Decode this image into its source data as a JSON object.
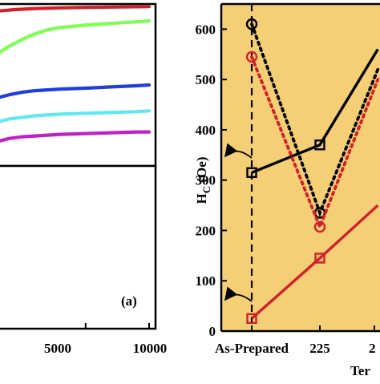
{
  "chart_data": [
    {
      "type": "line",
      "panel_label": "(a)",
      "x_ticks": [
        "5000",
        "10000"
      ],
      "xlim": [
        -2000,
        10000
      ],
      "ylim": [
        0,
        1
      ],
      "grid": false,
      "series": [
        {
          "color": "#d0202a",
          "x": [
            -2000,
            -500,
            1000,
            3000,
            5000,
            7000,
            9000,
            10000
          ],
          "values": [
            0.956,
            0.966,
            0.972,
            0.976,
            0.979,
            0.981,
            0.983,
            0.984
          ]
        },
        {
          "color": "#7cff52",
          "x": [
            -2000,
            -1000,
            0,
            500,
            1000,
            2000,
            3000,
            5000,
            7000,
            9000,
            10000
          ],
          "values": [
            0.69,
            0.74,
            0.78,
            0.8,
            0.815,
            0.84,
            0.855,
            0.87,
            0.88,
            0.89,
            0.895
          ]
        },
        {
          "color": "#1f3fd8",
          "x": [
            -2000,
            -1000,
            0,
            1000,
            3000,
            5000,
            7000,
            9000,
            10000
          ],
          "values": [
            0.42,
            0.44,
            0.455,
            0.465,
            0.475,
            0.48,
            0.488,
            0.495,
            0.5
          ]
        },
        {
          "color": "#5fe8f0",
          "x": [
            -2000,
            -1000,
            0,
            1000,
            3000,
            5000,
            7000,
            9000,
            10000
          ],
          "values": [
            0.27,
            0.29,
            0.3,
            0.31,
            0.32,
            0.325,
            0.33,
            0.335,
            0.34
          ]
        },
        {
          "color": "#c020c8",
          "x": [
            -2000,
            -1000,
            0,
            1000,
            3000,
            5000,
            7000,
            9000,
            10000
          ],
          "values": [
            0.15,
            0.17,
            0.18,
            0.185,
            0.195,
            0.2,
            0.205,
            0.21,
            0.21
          ]
        }
      ]
    },
    {
      "type": "line",
      "ylabel_main": "H",
      "ylabel_sub": "C",
      "ylabel_rest": " (Oe)",
      "xlabel_partial": "Ter",
      "ylim": [
        0,
        650
      ],
      "y_ticks": [
        "0",
        "100",
        "200",
        "300",
        "400",
        "500",
        "600"
      ],
      "categories": [
        "As-Prepared",
        "225",
        "2"
      ],
      "background_color": "#f5cf75",
      "grid": false,
      "series": [
        {
          "color": "#000000",
          "marker": "square",
          "style": "solid",
          "x": [
            0,
            1,
            1.85
          ],
          "values": [
            315,
            370,
            560
          ]
        },
        {
          "color": "#d0202a",
          "marker": "square",
          "style": "solid",
          "x": [
            0,
            1,
            1.85
          ],
          "values": [
            25,
            145,
            250
          ]
        },
        {
          "color": "#000000",
          "marker": "circle",
          "style": "dotted",
          "x": [
            0,
            1,
            1.85
          ],
          "values": [
            610,
            235,
            520
          ]
        },
        {
          "color": "#d0202a",
          "marker": "circle",
          "style": "dotted",
          "x": [
            0,
            1,
            1.85
          ],
          "values": [
            545,
            207,
            500
          ]
        }
      ]
    }
  ]
}
